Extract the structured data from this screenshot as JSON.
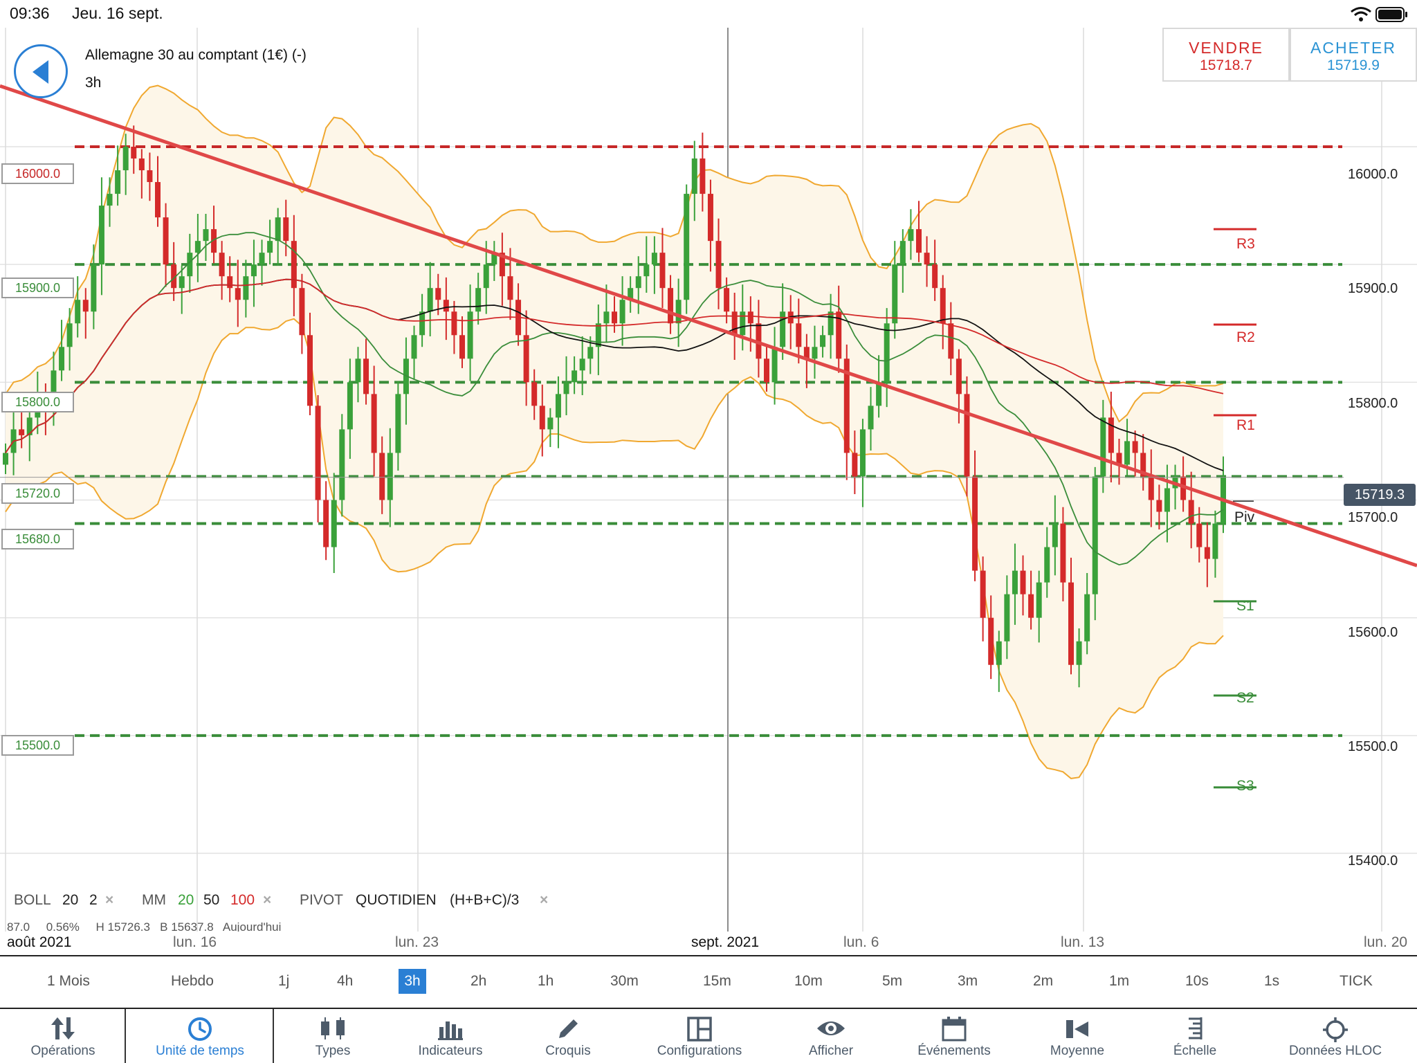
{
  "status": {
    "time": "09:36",
    "date": "Jeu. 16 sept."
  },
  "instrument": {
    "title": "Allemagne 30 au comptant (1€) (-)",
    "timeframe": "3h"
  },
  "trade": {
    "sell": {
      "label": "VENDRE",
      "price": "15718.7"
    },
    "buy": {
      "label": "ACHETER",
      "price": "15719.9"
    }
  },
  "levels": [
    {
      "label": "16000.0",
      "value": 16000,
      "color": "#c62828",
      "kind": "resistance"
    },
    {
      "label": "15900.0",
      "value": 15900,
      "color": "#3a8d3a",
      "kind": "support"
    },
    {
      "label": "15800.0",
      "value": 15800,
      "color": "#3a8d3a",
      "kind": "support"
    },
    {
      "label": "15720.0",
      "value": 15720,
      "color": "#3a8d3a",
      "kind": "support"
    },
    {
      "label": "15680.0",
      "value": 15680,
      "color": "#3a8d3a",
      "kind": "support"
    },
    {
      "label": "15500.0",
      "value": 15500,
      "color": "#3a8d3a",
      "kind": "support"
    }
  ],
  "price_axis": [
    "16000.0",
    "15900.0",
    "15800.0",
    "15700.0",
    "15600.0",
    "15500.0",
    "15400.0"
  ],
  "last_price": "15719.3",
  "pivots": [
    {
      "label": "R3",
      "value": 15930,
      "color": "#d42a2a"
    },
    {
      "label": "R2",
      "value": 15849,
      "color": "#d42a2a"
    },
    {
      "label": "R1",
      "value": 15772,
      "color": "#d42a2a"
    },
    {
      "label": "Piv",
      "value": 15698,
      "color": "#222222"
    },
    {
      "label": "S1",
      "value": 15614,
      "color": "#3a8d3a"
    },
    {
      "label": "S2",
      "value": 15534,
      "color": "#3a8d3a"
    },
    {
      "label": "S3",
      "value": 15456,
      "color": "#3a8d3a"
    }
  ],
  "indicators": {
    "boll": {
      "name": "BOLL",
      "period": "20",
      "dev": "2"
    },
    "mm": {
      "name": "MM",
      "p1": "20",
      "p2": "50",
      "p3": "100"
    },
    "pivot": {
      "name": "PIVOT",
      "type": "QUOTIDIEN",
      "formula": "(H+B+C)/3"
    },
    "close_symbol": "×",
    "info_row": "87.0     0.56%     H 15726.3   B 15637.8   Aujourd'hui"
  },
  "x_axis": [
    "août 2021",
    "lun. 16",
    "lun. 23",
    "sept. 2021",
    "lun. 6",
    "lun. 13",
    "lun. 20"
  ],
  "timeframes": [
    "1 Mois",
    "Hebdo",
    "1j",
    "4h",
    "3h",
    "2h",
    "1h",
    "30m",
    "15m",
    "10m",
    "5m",
    "3m",
    "2m",
    "1m",
    "10s",
    "1s",
    "TICK"
  ],
  "active_timeframe": "3h",
  "tabs": [
    {
      "label": "Opérations",
      "icon": "arrows-updown-icon"
    },
    {
      "label": "Unité de temps",
      "icon": "clock-icon"
    },
    {
      "label": "Types",
      "icon": "candles-icon"
    },
    {
      "label": "Indicateurs",
      "icon": "bar-chart-icon"
    },
    {
      "label": "Croquis",
      "icon": "pencil-icon"
    },
    {
      "label": "Configurations",
      "icon": "layout-icon"
    },
    {
      "label": "Afficher",
      "icon": "eye-icon"
    },
    {
      "label": "Événements",
      "icon": "calendar-icon"
    },
    {
      "label": "Moyenne",
      "icon": "average-icon"
    },
    {
      "label": "Échelle",
      "icon": "scale-icon"
    },
    {
      "label": "Données HLOC",
      "icon": "crosshair-icon"
    }
  ],
  "active_tab": "Unité de temps",
  "colors": {
    "accent": "#2a7fd4",
    "up": "#3aa13a",
    "down": "#d42a2a",
    "trendline": "#e04848",
    "band": "#f0a830"
  },
  "chart_data": {
    "type": "candlestick",
    "ylim": [
      15370,
      16110
    ],
    "closes": [
      15740,
      15760,
      15755,
      15770,
      15790,
      15780,
      15810,
      15830,
      15850,
      15870,
      15860,
      15900,
      15950,
      15960,
      15980,
      16000,
      15990,
      15980,
      15970,
      15940,
      15900,
      15880,
      15890,
      15910,
      15920,
      15930,
      15910,
      15890,
      15880,
      15870,
      15890,
      15900,
      15910,
      15920,
      15940,
      15920,
      15880,
      15840,
      15780,
      15700,
      15660,
      15700,
      15760,
      15800,
      15820,
      15790,
      15740,
      15700,
      15740,
      15790,
      15820,
      15840,
      15860,
      15880,
      15870,
      15860,
      15840,
      15820,
      15860,
      15880,
      15900,
      15910,
      15890,
      15870,
      15840,
      15800,
      15780,
      15760,
      15770,
      15790,
      15800,
      15810,
      15820,
      15830,
      15850,
      15860,
      15850,
      15870,
      15880,
      15890,
      15900,
      15910,
      15880,
      15850,
      15870,
      15960,
      15990,
      15960,
      15920,
      15880,
      15860,
      15840,
      15860,
      15850,
      15820,
      15800,
      15830,
      15860,
      15850,
      15830,
      15820,
      15830,
      15840,
      15860,
      15820,
      15740,
      15720,
      15760,
      15780,
      15800,
      15850,
      15900,
      15920,
      15930,
      15910,
      15900,
      15880,
      15850,
      15820,
      15790,
      15720,
      15640,
      15600,
      15560,
      15580,
      15620,
      15640,
      15620,
      15600,
      15630,
      15660,
      15680,
      15630,
      15560,
      15580,
      15620,
      15720,
      15770,
      15740,
      15730,
      15750,
      15740,
      15720,
      15700,
      15690,
      15710,
      15720,
      15700,
      15680,
      15660,
      15650,
      15680,
      15719
    ],
    "boll_period": 20,
    "boll_dev": 2,
    "ma_periods": [
      20,
      50,
      100
    ],
    "trendline": [
      [
        0,
        16050
      ],
      [
        152,
        15700
      ]
    ]
  }
}
